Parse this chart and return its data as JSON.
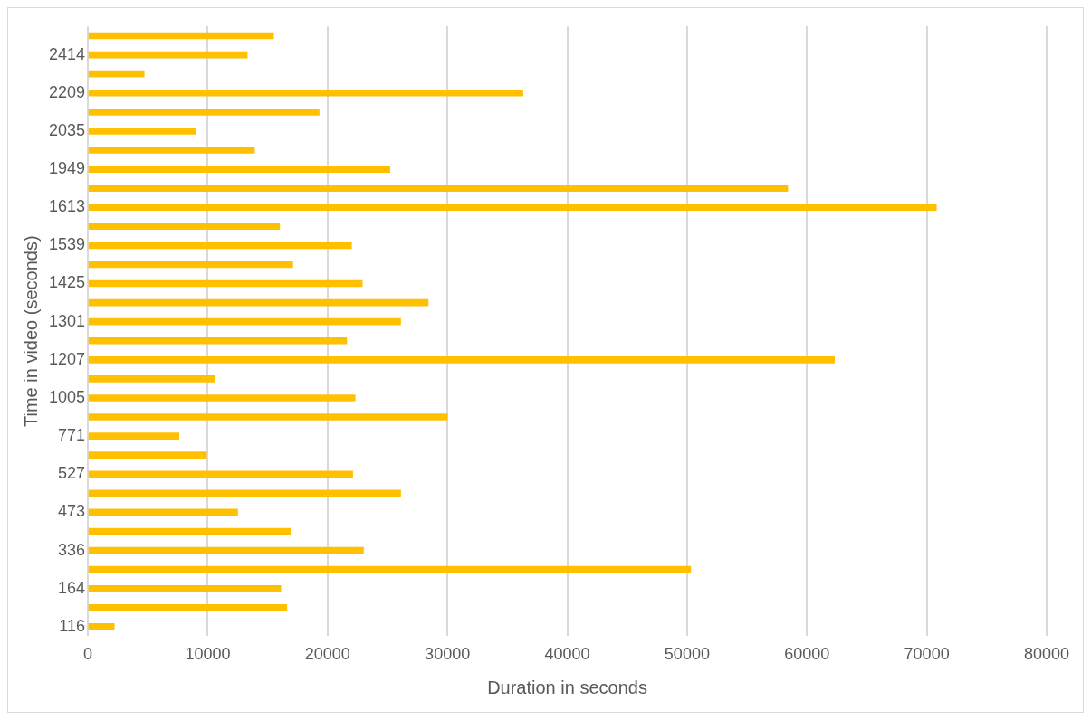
{
  "chart_data": {
    "type": "bar",
    "orientation": "horizontal",
    "xlabel": "Duration in seconds",
    "ylabel": "Time in video (seconds)",
    "categories": [
      null,
      "2414",
      null,
      "2209",
      null,
      "2035",
      null,
      "1949",
      null,
      "1613",
      null,
      "1539",
      null,
      "1425",
      null,
      "1301",
      null,
      "1207",
      null,
      "1005",
      null,
      "771",
      null,
      "527",
      null,
      "473",
      null,
      "336",
      null,
      "164",
      null,
      "116"
    ],
    "values": [
      15500,
      13300,
      4700,
      36300,
      19300,
      9000,
      13900,
      25200,
      58400,
      70800,
      16000,
      22000,
      17100,
      22900,
      28400,
      26100,
      21600,
      62300,
      10600,
      22300,
      30000,
      7600,
      9900,
      22100,
      26100,
      12500,
      16900,
      23000,
      50300,
      16100,
      16600,
      2200
    ],
    "color": "#ffc000",
    "xlim": [
      0,
      80000
    ],
    "xticks": [
      0,
      10000,
      20000,
      30000,
      40000,
      50000,
      60000,
      70000,
      80000
    ],
    "grid": "x",
    "legend": false
  }
}
